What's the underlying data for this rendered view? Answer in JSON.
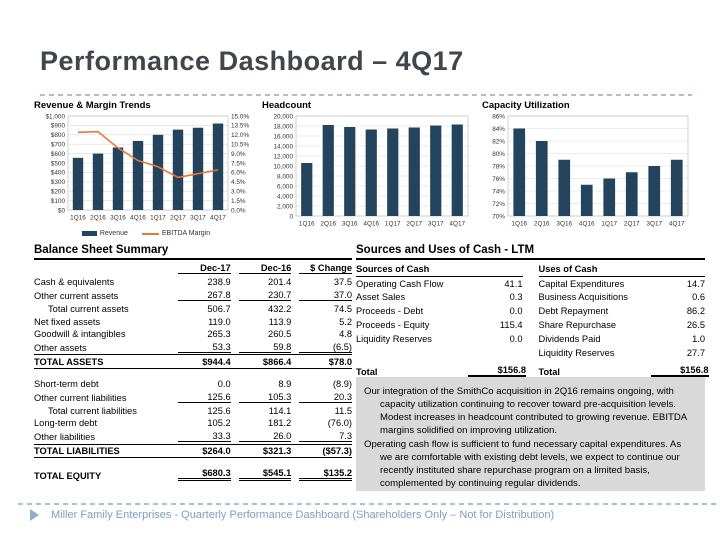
{
  "title": "Performance Dashboard – 4Q17",
  "colors": {
    "bar": "#24435c",
    "line": "#e8763c",
    "accent_blue": "#8faecc",
    "comment_bg": "#d9d9d9"
  },
  "chart_data": [
    {
      "type": "bar+line",
      "title": "Revenue & Margin Trends",
      "categories": [
        "1Q16",
        "2Q16",
        "3Q16",
        "4Q16",
        "1Q17",
        "2Q17",
        "3Q17",
        "4Q17"
      ],
      "series": [
        {
          "name": "Revenue",
          "type": "bar",
          "axis": "left",
          "values": [
            555,
            600,
            665,
            735,
            800,
            855,
            875,
            920
          ]
        },
        {
          "name": "EBITDA Margin",
          "type": "line",
          "axis": "right",
          "values": [
            12.4,
            12.5,
            9.9,
            7.9,
            6.9,
            5.2,
            5.8,
            6.4
          ]
        }
      ],
      "left_axis": {
        "min": 0,
        "max": 1000,
        "step": 100,
        "format": "$"
      },
      "right_axis": {
        "min": 0,
        "max": 15,
        "step": 1.5,
        "format": "%1"
      },
      "legend": [
        "Revenue",
        "EBITDA Margin"
      ],
      "legend_position": "bottom",
      "grid": true,
      "colors": {
        "bar": "#24435c",
        "line": "#e8763c"
      }
    },
    {
      "type": "bar",
      "title": "Headcount",
      "categories": [
        "1Q16",
        "2Q16",
        "3Q16",
        "4Q16",
        "1Q17",
        "2Q17",
        "3Q17",
        "4Q17"
      ],
      "values": [
        10600,
        18200,
        17800,
        17300,
        17500,
        17700,
        18100,
        18300
      ],
      "left_axis": {
        "min": 0,
        "max": 20000,
        "step": 2000,
        "format": ","
      },
      "grid": true,
      "colors": {
        "bar": "#24435c"
      }
    },
    {
      "type": "bar",
      "title": "Capacity Utilization",
      "categories": [
        "1Q16",
        "2Q16",
        "3Q16",
        "4Q16",
        "1Q17",
        "2Q17",
        "3Q17",
        "4Q17"
      ],
      "values": [
        84,
        82,
        79,
        75,
        76,
        77,
        78,
        79
      ],
      "left_axis": {
        "min": 70,
        "max": 86,
        "step": 2,
        "format": "%0"
      },
      "grid": true,
      "colors": {
        "bar": "#24435c"
      }
    }
  ],
  "balance_sheet": {
    "heading": "Balance Sheet Summary",
    "columns": [
      "",
      "Dec-17",
      "Dec-16",
      "$ Change"
    ],
    "rows": [
      {
        "label": "Cash & equivalents",
        "values": [
          "238.9",
          "201.4",
          "37.5"
        ],
        "style": ""
      },
      {
        "label": "Other current assets",
        "values": [
          "267.8",
          "230.7",
          "37.0"
        ],
        "style": "u"
      },
      {
        "label": "Total current assets",
        "values": [
          "506.7",
          "432.2",
          "74.5"
        ],
        "style": "indent"
      },
      {
        "label": "Net fixed assets",
        "values": [
          "119.0",
          "113.9",
          "5.2"
        ],
        "style": ""
      },
      {
        "label": "Goodwill & intangibles",
        "values": [
          "265.3",
          "260.5",
          "4.8"
        ],
        "style": ""
      },
      {
        "label": "Other assets",
        "values": [
          "53.3",
          "59.8",
          "(6.5)"
        ],
        "style": "u"
      },
      {
        "label": "TOTAL ASSETS",
        "values": [
          "$944.4",
          "$866.4",
          "$78.0"
        ],
        "style": "total"
      },
      {
        "label": "",
        "values": [
          "",
          "",
          ""
        ],
        "style": "spacer"
      },
      {
        "label": "Short-term debt",
        "values": [
          "0.0",
          "8.9",
          "(8.9)"
        ],
        "style": ""
      },
      {
        "label": "Other current liabilities",
        "values": [
          "125.6",
          "105.3",
          "20.3"
        ],
        "style": "u"
      },
      {
        "label": "Total current liabilities",
        "values": [
          "125.6",
          "114.1",
          "11.5"
        ],
        "style": "indent"
      },
      {
        "label": "Long-term debt",
        "values": [
          "105.2",
          "181.2",
          "(76.0)"
        ],
        "style": ""
      },
      {
        "label": "Other liabilities",
        "values": [
          "33.3",
          "26.0",
          "7.3"
        ],
        "style": "u"
      },
      {
        "label": "TOTAL LIABILITIES",
        "values": [
          "$264.0",
          "$321.3",
          "($57.3)"
        ],
        "style": "total"
      },
      {
        "label": "",
        "values": [
          "",
          "",
          ""
        ],
        "style": "spacer"
      },
      {
        "label": "TOTAL EQUITY",
        "values": [
          "$680.3",
          "$545.1",
          "$135.2"
        ],
        "style": "grand"
      }
    ]
  },
  "sources_uses": {
    "heading": "Sources and Uses of Cash - LTM",
    "left": {
      "header": "Sources of Cash",
      "rows": [
        [
          "Operating Cash Flow",
          "41.1"
        ],
        [
          "Asset Sales",
          "0.3"
        ],
        [
          "Proceeds - Debt",
          "0.0"
        ],
        [
          "Proceeds - Equity",
          "115.4"
        ],
        [
          "Liquidity Reserves",
          "0.0"
        ]
      ],
      "total": [
        "Total",
        "$156.8"
      ]
    },
    "right": {
      "header": "Uses of Cash",
      "rows": [
        [
          "Capital Expenditures",
          "14.7"
        ],
        [
          "Business Acquisitions",
          "0.6"
        ],
        [
          "Debt Repayment",
          "86.2"
        ],
        [
          "Share Repurchase",
          "26.5"
        ],
        [
          "Dividends Paid",
          "1.0"
        ],
        [
          "Liquidity Reserves",
          "27.7"
        ]
      ],
      "total": [
        "Total",
        "$156.8"
      ]
    }
  },
  "commentary": {
    "paragraphs": [
      "Our integration of the SmithCo acquisition in 2Q16 remains ongoing, with capacity utilization continuing to recover toward pre-acquisition levels.  Modest increases in headcount contributed to growing revenue.  EBITDA margins solidified on improving utilization.",
      "Operating cash flow is sufficient to fund necessary capital expenditures.  As we are comfortable with existing debt levels, we expect to continue our recently instituted share repurchase program on a limited basis, complemented by continuing regular dividends."
    ]
  },
  "footer": {
    "text": "Miller Family Enterprises - Quarterly Performance Dashboard (Shareholders Only – Not for Distribution)"
  }
}
